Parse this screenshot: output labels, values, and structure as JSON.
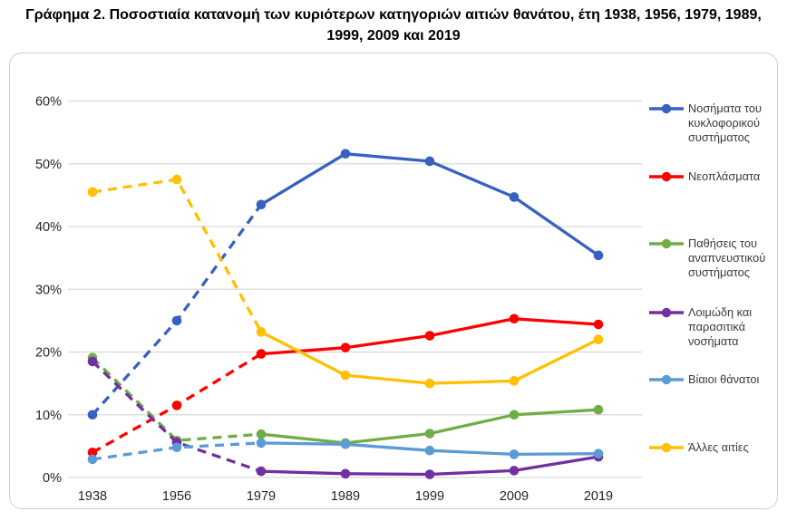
{
  "title": "Γράφημα 2. Ποσοστιαία κατανομή των κυριότερων κατηγοριών αιτιών θανάτου, έτη 1938, 1956, 1979, 1989, 1999, 2009 και 2019",
  "colors": {
    "gridline": "#d9d9d9",
    "axis_text": "#262626",
    "card_border": "#cfcfcf"
  },
  "chart_data": {
    "type": "line",
    "title": "Γράφημα 2. Ποσοστιαία κατανομή των κυριότερων κατηγοριών αιτιών θανάτου, έτη 1938, 1956, 1979, 1989, 1999, 2009 και 2019",
    "categories": [
      "1938",
      "1956",
      "1979",
      "1989",
      "1999",
      "2009",
      "2019"
    ],
    "y_ticks": [
      "0%",
      "10%",
      "20%",
      "30%",
      "40%",
      "50%",
      "60%"
    ],
    "ylim": [
      0,
      60
    ],
    "grid": true,
    "legend_position": "right",
    "style_note": "segments for 1938-1956-1979 are dashed, 1979-2019 solid",
    "series": [
      {
        "name": "Νοσήματα του κυκλοφορικού συστήματος",
        "color": "#3661c1",
        "dashed_until_index": 2,
        "values": [
          10.0,
          25.0,
          43.5,
          51.6,
          50.4,
          44.7,
          35.4
        ]
      },
      {
        "name": "Νεοπλάσματα",
        "color": "#ff0000",
        "dashed_until_index": 2,
        "values": [
          4.0,
          11.5,
          19.7,
          20.7,
          22.6,
          25.3,
          24.4
        ]
      },
      {
        "name": "Παθήσεις του αναπνευστικού συστήματος",
        "color": "#70ad47",
        "dashed_until_index": 2,
        "values": [
          19.1,
          5.9,
          6.9,
          5.5,
          7.0,
          10.0,
          10.8
        ]
      },
      {
        "name": "Λοιμώδη και παρασιτικά νοσήματα",
        "color": "#7030a0",
        "dashed_until_index": 2,
        "values": [
          18.5,
          5.6,
          1.0,
          0.6,
          0.5,
          1.1,
          3.3
        ]
      },
      {
        "name": "Βίαιοι θάνατοι",
        "color": "#5b9bd5",
        "dashed_until_index": 2,
        "values": [
          2.9,
          4.8,
          5.5,
          5.3,
          4.3,
          3.7,
          3.8
        ]
      },
      {
        "name": "Άλλες αιτίες",
        "color": "#ffc000",
        "dashed_until_index": 2,
        "values": [
          45.5,
          47.5,
          23.2,
          16.3,
          15.0,
          15.4,
          22.0
        ]
      }
    ]
  }
}
